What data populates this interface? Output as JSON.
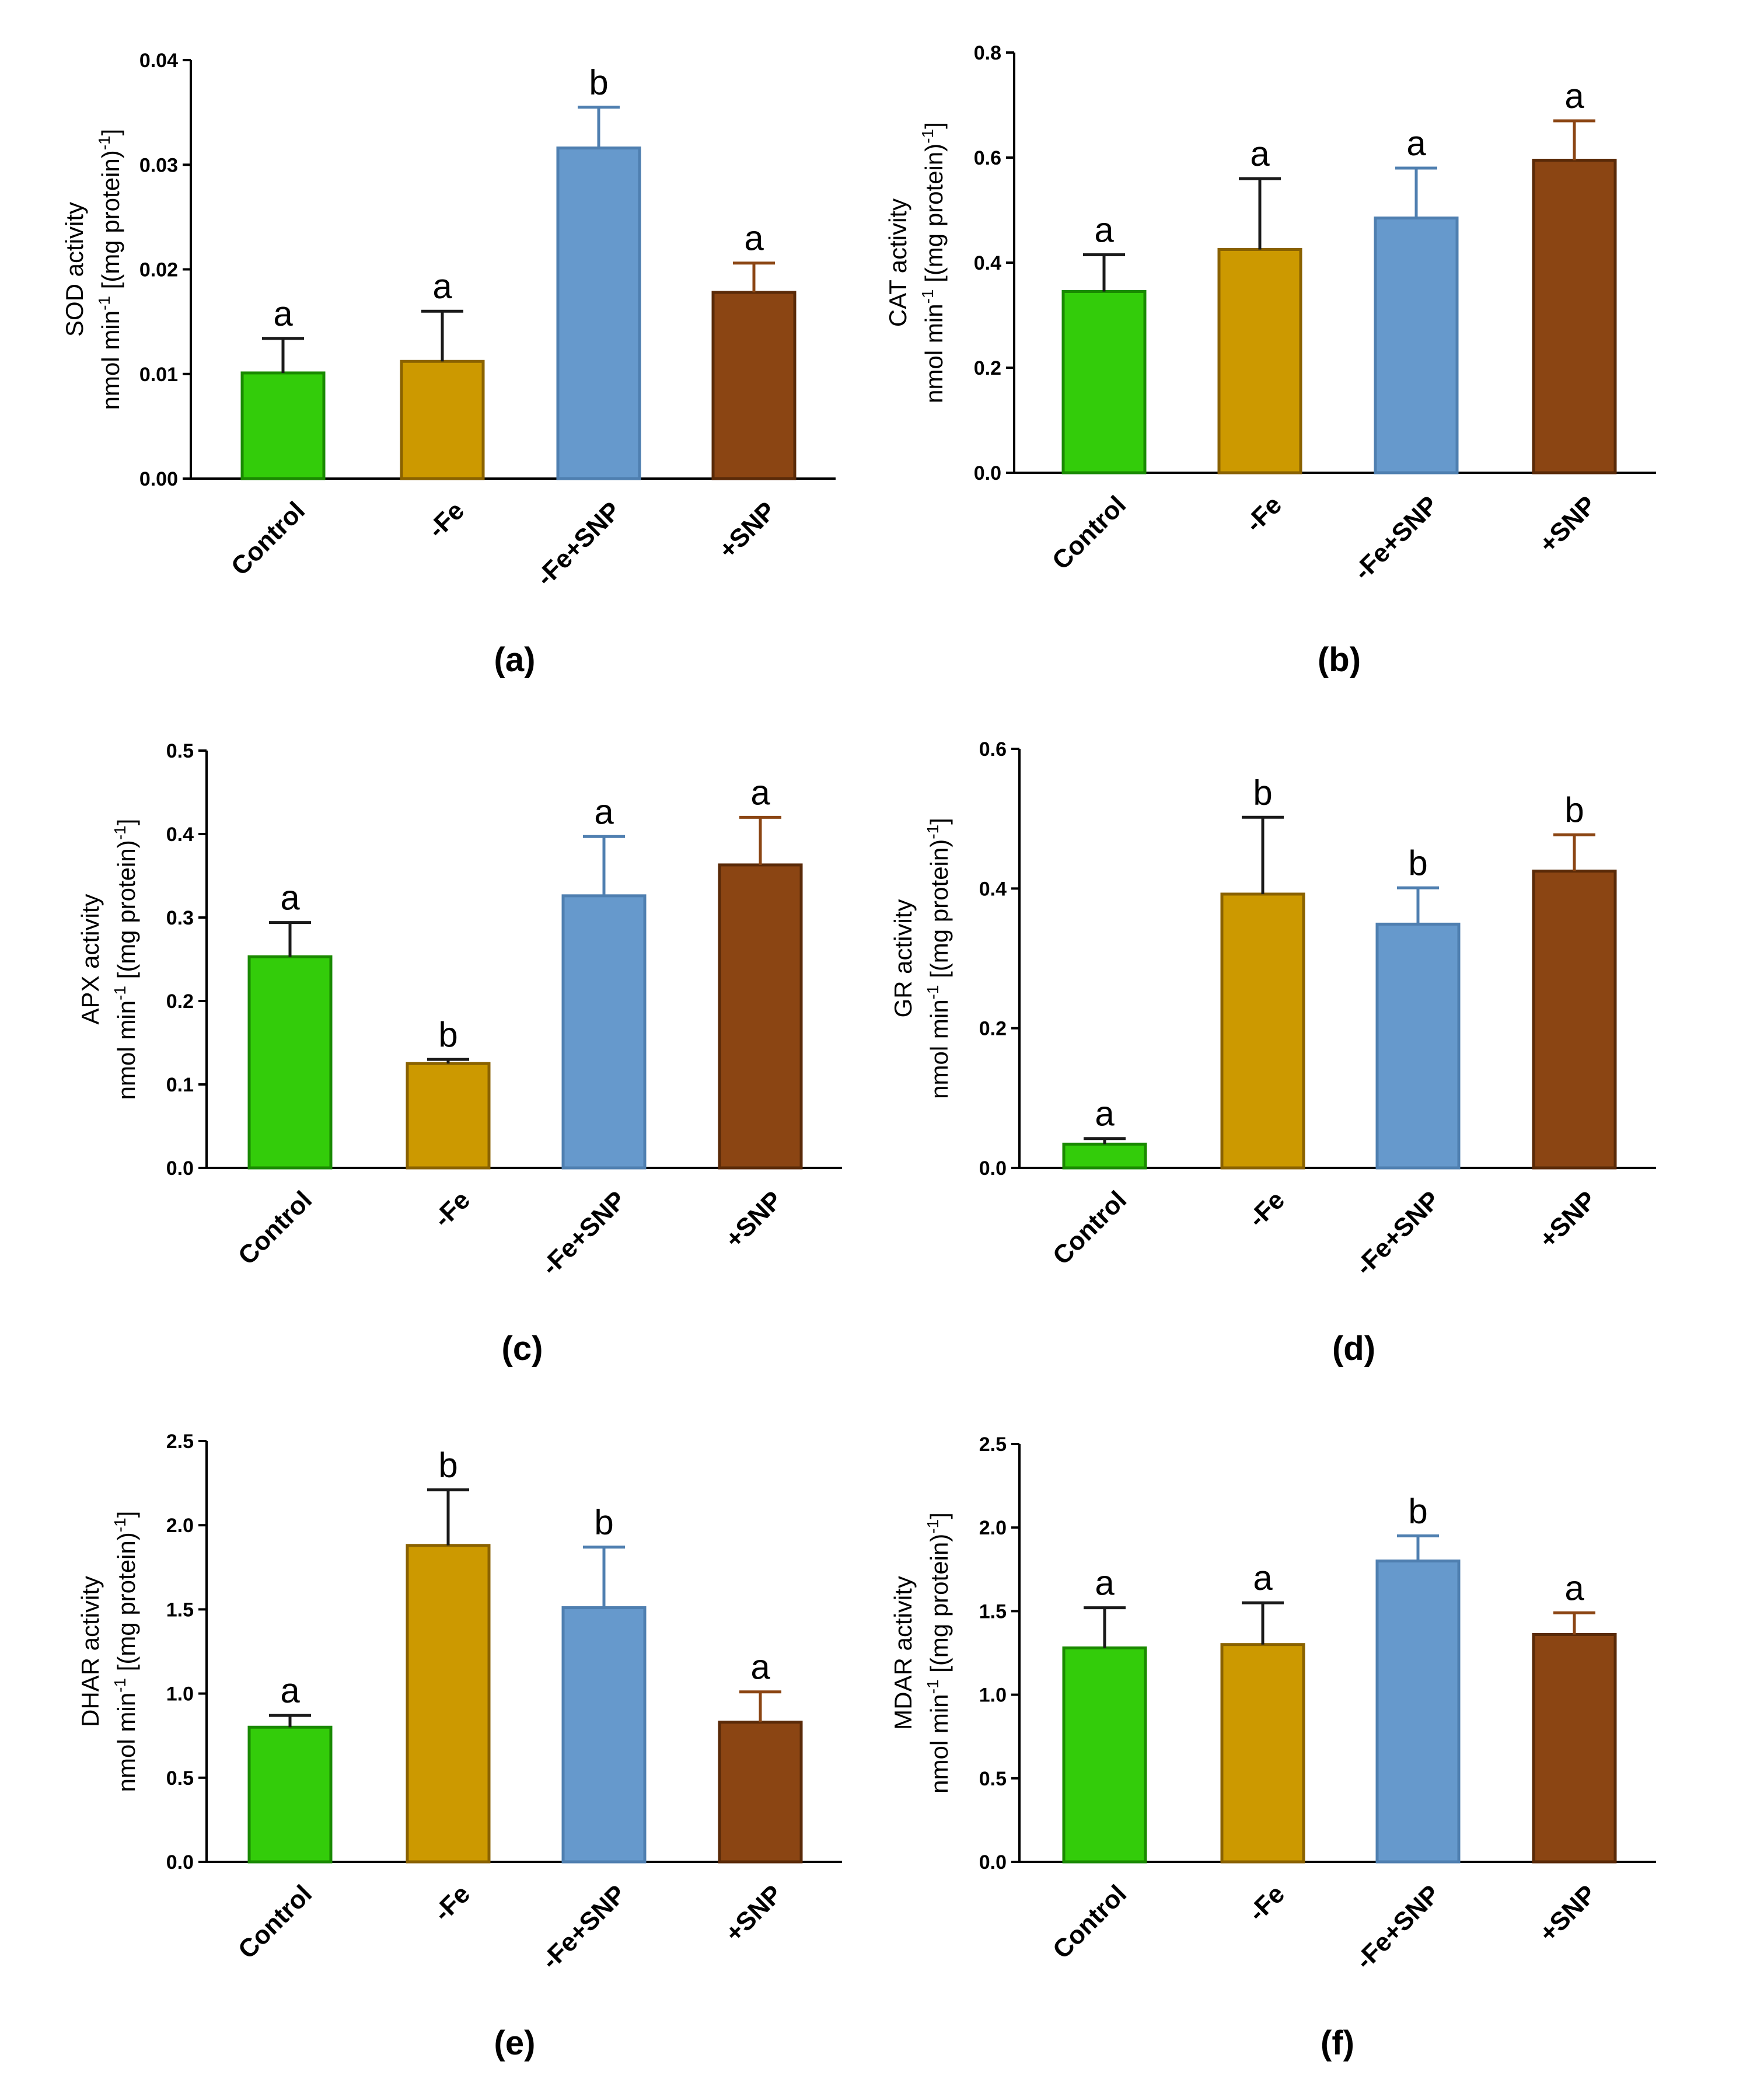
{
  "chart_data": [
    {
      "type": "bar",
      "panel": "(a)",
      "categories": [
        "Control",
        "-Fe",
        "-Fe+SNP",
        "+SNP"
      ],
      "values": [
        0.0101,
        0.0112,
        0.0316,
        0.0178
      ],
      "errors": [
        0.0033,
        0.0048,
        0.0039,
        0.0028
      ],
      "letters": [
        "a",
        "a",
        "b",
        "a"
      ],
      "ylabel_line1": "SOD activity",
      "ylabel_line2": {
        "pre": "nmol min",
        "sup1": "-1",
        "mid": " [(mg protein)",
        "sup2": "-1",
        "post": "]"
      },
      "ylim": [
        0,
        0.04
      ],
      "yticks": [
        "0.00",
        "0.01",
        "0.02",
        "0.03",
        "0.04"
      ]
    },
    {
      "type": "bar",
      "panel": "(b)",
      "categories": [
        "Control",
        "-Fe",
        "-Fe+SNP",
        "+SNP"
      ],
      "values": [
        0.345,
        0.425,
        0.485,
        0.595
      ],
      "errors": [
        0.07,
        0.135,
        0.095,
        0.075
      ],
      "letters": [
        "a",
        "a",
        "a",
        "a"
      ],
      "ylabel_line1": "CAT activity",
      "ylabel_line2": {
        "pre": "nmol min",
        "sup1": "-1",
        "mid": " [(mg protein)",
        "sup2": "-1",
        "post": "]"
      },
      "ylim": [
        0,
        0.8
      ],
      "yticks": [
        "0.0",
        "0.2",
        "0.4",
        "0.6",
        "0.8"
      ]
    },
    {
      "type": "bar",
      "panel": "(c)",
      "categories": [
        "Control",
        "-Fe",
        "-Fe+SNP",
        "+SNP"
      ],
      "values": [
        0.253,
        0.125,
        0.326,
        0.363
      ],
      "errors": [
        0.041,
        0.005,
        0.071,
        0.057
      ],
      "letters": [
        "a",
        "b",
        "a",
        "a"
      ],
      "ylabel_line1": "APX activity",
      "ylabel_line2": {
        "pre": "nmol min",
        "sup1": "-1",
        "mid": " [(mg protein)",
        "sup2": "-1",
        "post": "]"
      },
      "ylim": [
        0,
        0.5
      ],
      "yticks": [
        "0.0",
        "0.1",
        "0.2",
        "0.3",
        "0.4",
        "0.5"
      ]
    },
    {
      "type": "bar",
      "panel": "(d)",
      "categories": [
        "Control",
        "-Fe",
        "-Fe+SNP",
        "+SNP"
      ],
      "values": [
        0.034,
        0.392,
        0.349,
        0.425
      ],
      "errors": [
        0.008,
        0.11,
        0.052,
        0.052
      ],
      "letters": [
        "a",
        "b",
        "b",
        "b"
      ],
      "ylabel_line1": "GR activity",
      "ylabel_line2": {
        "pre": "nmol min",
        "sup1": "-1",
        "mid": " [(mg protein)",
        "sup2": "-1",
        "post": "]"
      },
      "ylim": [
        0,
        0.6
      ],
      "yticks": [
        "0.0",
        "0.2",
        "0.4",
        "0.6"
      ]
    },
    {
      "type": "bar",
      "panel": "(e)",
      "categories": [
        "Control",
        "-Fe",
        "-Fe+SNP",
        "+SNP"
      ],
      "values": [
        0.8,
        1.88,
        1.51,
        0.83
      ],
      "errors": [
        0.07,
        0.33,
        0.36,
        0.18
      ],
      "letters": [
        "a",
        "b",
        "b",
        "a"
      ],
      "ylabel_line1": "DHAR activity",
      "ylabel_line2": {
        "pre": "nmol min",
        "sup1": "-1",
        "mid": " [(mg protein)",
        "sup2": "-1",
        "post": "]"
      },
      "ylim": [
        0,
        2.5
      ],
      "yticks": [
        "0.0",
        "0.5",
        "1.0",
        "1.5",
        "2.0",
        "2.5"
      ]
    },
    {
      "type": "bar",
      "panel": "(f)",
      "categories": [
        "Control",
        "-Fe",
        "-Fe+SNP",
        "+SNP"
      ],
      "values": [
        1.28,
        1.3,
        1.8,
        1.36
      ],
      "errors": [
        0.24,
        0.25,
        0.15,
        0.13
      ],
      "letters": [
        "a",
        "a",
        "b",
        "a"
      ],
      "ylabel_line1": "MDAR activity",
      "ylabel_line2": {
        "pre": "nmol min",
        "sup1": "-1",
        "mid": " [(mg protein)",
        "sup2": "-1",
        "post": "]"
      },
      "ylim": [
        0,
        2.5
      ],
      "yticks": [
        "0.0",
        "0.5",
        "1.0",
        "1.5",
        "2.0",
        "2.5"
      ]
    }
  ],
  "colors": {
    "bar_fills": [
      "#33cc0a",
      "#cc9900",
      "#6699cc",
      "#8b4513"
    ],
    "bar_strokes": [
      "#1a8a00",
      "#8a6200",
      "#4f7fb0",
      "#5a2a08"
    ],
    "error_strokes": [
      "#1a1a1a",
      "#1a1a1a",
      "#4f7fb0",
      "#8b4513"
    ]
  }
}
